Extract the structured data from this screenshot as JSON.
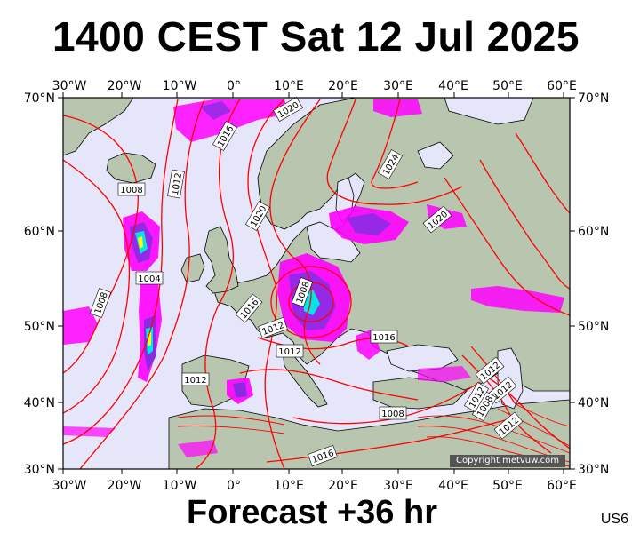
{
  "title": "1400 CEST Sat 12 Jul 2025",
  "footer": "Forecast +36 hr",
  "code": "US6",
  "copyright": "Copyright metvuw.com",
  "axes": {
    "lon_labels": [
      "30°W",
      "20°W",
      "10°W",
      "0°",
      "10°E",
      "20°E",
      "30°E",
      "40°E",
      "50°E",
      "60°E"
    ],
    "lat_labels": [
      "70°N",
      "60°N",
      "50°N",
      "40°N",
      "30°N"
    ]
  },
  "isobar_labels": [
    "1020",
    "1016",
    "1012",
    "1008",
    "1024",
    "1020",
    "1020",
    "1016",
    "1004",
    "1008",
    "1012",
    "1012",
    "1016",
    "1008",
    "1012",
    "1012",
    "1012",
    "1012",
    "1008",
    "1012",
    "1008",
    "1016"
  ],
  "colors": {
    "ocean": "#e6e6fa",
    "land": "#b8c6b0",
    "isobar": "#ff0000",
    "precip_light": "#ff00ff",
    "precip_mid": "#8a2be2",
    "precip_heavy": "#00e5e5",
    "precip_extreme": "#ffff00"
  }
}
